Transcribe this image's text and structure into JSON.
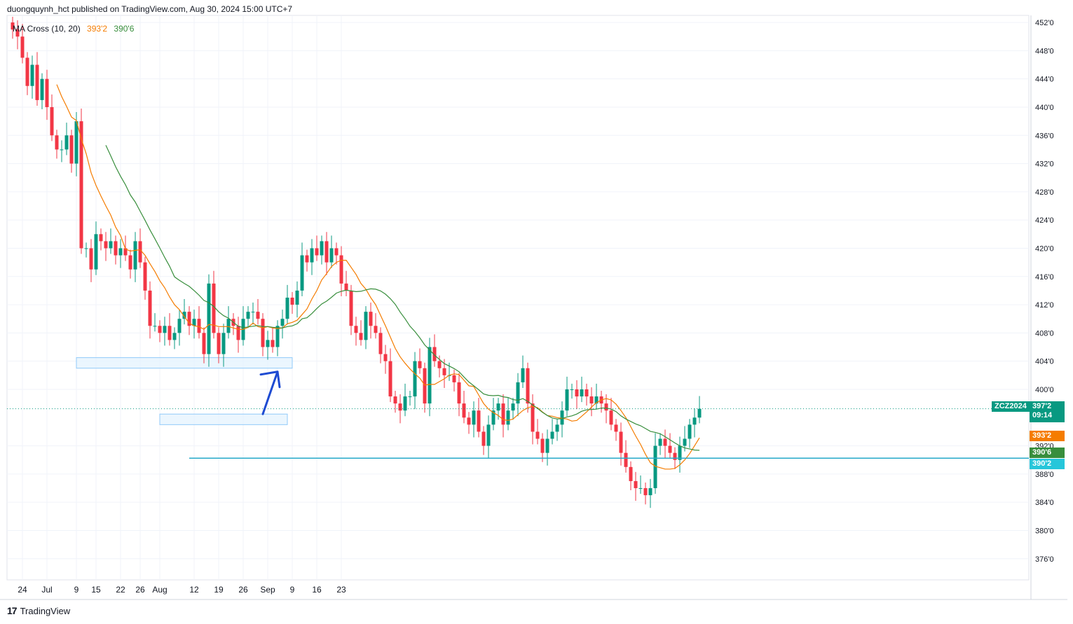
{
  "header": {
    "publisher_line": "duongquynh_hct published on TradingView.com, Aug 30, 2024 15:00 UTC+7"
  },
  "legend": {
    "indicator": "MA Cross (10, 20)",
    "fast_value": "393'2",
    "slow_value": "390'6"
  },
  "tags": {
    "symbol": "ZCZ2024",
    "last_price": "397'2",
    "countdown": "09:14",
    "fast_ma": "393'2",
    "slow_ma": "390'6",
    "support_level": "390'2"
  },
  "footer": {
    "brand": "TradingView"
  },
  "colors": {
    "up": "#089981",
    "down": "#f23645",
    "ma_fast": "#f57c00",
    "ma_slow": "#388e3c",
    "zone_fill": "#e3f2fd",
    "zone_border": "#90caf9",
    "support_line": "#26a9c9",
    "arrow": "#1e4bd2"
  },
  "chart_data": {
    "type": "candlestick",
    "symbol": "ZCZ2024",
    "ylim": [
      373,
      453
    ],
    "y_ticks": [
      {
        "value": 452,
        "label": "452'0"
      },
      {
        "value": 448,
        "label": "448'0"
      },
      {
        "value": 444,
        "label": "444'0"
      },
      {
        "value": 440,
        "label": "440'0"
      },
      {
        "value": 436,
        "label": "436'0"
      },
      {
        "value": 432,
        "label": "432'0"
      },
      {
        "value": 428,
        "label": "428'0"
      },
      {
        "value": 424,
        "label": "424'0"
      },
      {
        "value": 420,
        "label": "420'0"
      },
      {
        "value": 416,
        "label": "416'0"
      },
      {
        "value": 412,
        "label": "412'0"
      },
      {
        "value": 408,
        "label": "408'0"
      },
      {
        "value": 404,
        "label": "404'0"
      },
      {
        "value": 400,
        "label": "400'0"
      },
      {
        "value": 392,
        "label": "392'0"
      },
      {
        "value": 388,
        "label": "388'0"
      },
      {
        "value": 384,
        "label": "384'0"
      },
      {
        "value": 380,
        "label": "380'0"
      },
      {
        "value": 376,
        "label": "376'0"
      }
    ],
    "x_ticks": [
      {
        "date": "2024-06-24",
        "label": "24"
      },
      {
        "date": "2024-07-01",
        "label": "Jul"
      },
      {
        "date": "2024-07-09",
        "label": "9"
      },
      {
        "date": "2024-07-15",
        "label": "15"
      },
      {
        "date": "2024-07-22",
        "label": "22"
      },
      {
        "date": "2024-07-26",
        "label": "26"
      },
      {
        "date": "2024-08-01",
        "label": "Aug"
      },
      {
        "date": "2024-08-12",
        "label": "12"
      },
      {
        "date": "2024-08-19",
        "label": "19"
      },
      {
        "date": "2024-08-26",
        "label": "26"
      },
      {
        "date": "2024-09-01",
        "label": "Sep"
      },
      {
        "date": "2024-09-09",
        "label": "9"
      },
      {
        "date": "2024-09-16",
        "label": "16"
      },
      {
        "date": "2024-09-23",
        "label": "23"
      }
    ],
    "close": [
      451,
      450,
      447,
      443,
      446,
      441,
      444,
      440,
      436,
      434,
      434,
      436,
      432,
      438,
      420,
      420,
      417,
      422,
      421,
      420,
      421,
      419,
      420,
      419,
      417,
      421,
      418,
      414,
      409,
      409,
      408,
      409,
      407,
      408,
      410,
      411,
      409,
      410,
      408,
      405,
      415,
      408,
      405,
      408,
      410,
      409,
      407,
      410,
      411,
      411,
      410,
      406,
      407,
      406,
      409,
      410,
      413,
      412,
      414,
      419,
      418,
      420,
      419,
      421,
      418,
      420,
      419,
      415,
      414,
      409,
      408,
      407,
      411,
      409,
      408,
      405,
      404,
      399,
      398,
      397,
      399,
      399,
      404,
      403,
      398,
      406,
      404,
      403,
      402,
      402,
      401,
      398,
      396,
      395,
      397,
      394,
      392,
      395,
      397,
      398,
      395,
      397,
      398,
      401,
      403,
      398,
      394,
      393,
      391,
      393,
      394,
      395,
      397,
      400,
      400,
      399,
      400,
      399,
      398,
      399,
      398,
      397,
      395,
      394,
      391,
      389,
      387,
      386,
      386,
      385,
      386,
      392,
      393,
      392,
      391,
      390,
      392,
      393,
      395,
      396,
      397.25
    ],
    "ma_fast": {
      "name": "MA 10",
      "last": 393.25
    },
    "ma_slow": {
      "name": "MA 20",
      "last": 390.75
    },
    "zones": [
      {
        "from": "2024-07-09",
        "to": "2024-09-09",
        "low": 403,
        "high": 404.5
      },
      {
        "from": "2024-08-01",
        "to": "2024-09-06",
        "low": 395,
        "high": 396.5
      }
    ],
    "support_line": {
      "from": "2024-08-09",
      "value": 390.25
    },
    "last_price_line": 397.25,
    "arrow": {
      "from_date": "2024-08-30",
      "from_value": 396.5,
      "to_date": "2024-09-04",
      "to_value": 402.5
    }
  }
}
